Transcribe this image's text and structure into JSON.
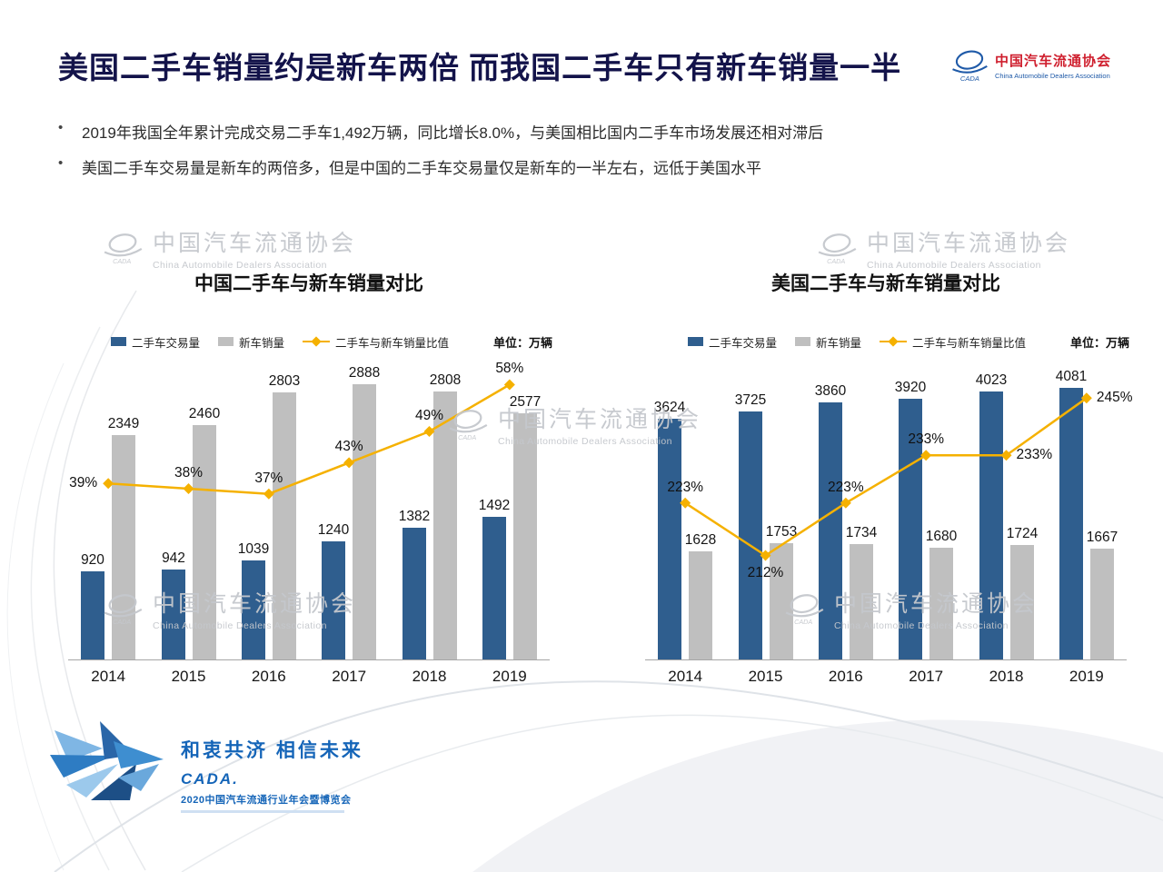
{
  "header": {
    "title": "美国二手车销量约是新车两倍 而我国二手车只有新车销量一半",
    "logo": {
      "cn": "中国汽车流通协会",
      "en": "China Automobile Dealers Association"
    }
  },
  "bullets": [
    "2019年我国全年累计完成交易二手车1,492万辆，同比增长8.0%，与美国相比国内二手车市场发展还相对滞后",
    "美国二手车交易量是新车的两倍多，但是中国的二手车交易量仅是新车的一半左右，远低于美国水平"
  ],
  "watermark": {
    "cn": "中国汽车流通协会",
    "en": "China Automobile Dealers Association"
  },
  "footer": {
    "slogan": "和衷共济 相信未来",
    "brand": "CADA.",
    "event": "2020中国汽车流通行业年会暨博览会"
  },
  "colors": {
    "bar_used": "#2F5E8E",
    "bar_new": "#BFBFBF",
    "line": "#F5B100",
    "title": "#13134a",
    "logo_red": "#cf1f2e",
    "logo_blue": "#1f5aa8"
  },
  "chart_data": [
    {
      "type": "bar",
      "title": "中国二手车与新车销量对比",
      "unit": "单位：万辆",
      "categories": [
        "2014",
        "2015",
        "2016",
        "2017",
        "2018",
        "2019"
      ],
      "series": [
        {
          "name": "二手车交易量",
          "kind": "bar",
          "values": [
            920,
            942,
            1039,
            1240,
            1382,
            1492
          ]
        },
        {
          "name": "新车销量",
          "kind": "bar",
          "values": [
            2349,
            2460,
            2803,
            2888,
            2808,
            2577
          ]
        },
        {
          "name": "二手车与新车销量比值",
          "kind": "line",
          "values": [
            39,
            38,
            37,
            43,
            49,
            58
          ],
          "labels": [
            "39%",
            "38%",
            "37%",
            "43%",
            "49%",
            "58%"
          ],
          "label_pos": [
            "left",
            "above",
            "above",
            "above",
            "above",
            "above"
          ]
        }
      ],
      "bar_axis_max": 3000,
      "line_axis_range": [
        5,
        60
      ],
      "legend_position": "top",
      "grid": false
    },
    {
      "type": "bar",
      "title": "美国二手车与新车销量对比",
      "unit": "单位：万辆",
      "categories": [
        "2014",
        "2015",
        "2016",
        "2017",
        "2018",
        "2019"
      ],
      "series": [
        {
          "name": "二手车交易量",
          "kind": "bar",
          "values": [
            3624,
            3725,
            3860,
            3920,
            4023,
            4081
          ]
        },
        {
          "name": "新车销量",
          "kind": "bar",
          "values": [
            1628,
            1753,
            1734,
            1680,
            1724,
            1667
          ]
        },
        {
          "name": "二手车与新车销量比值",
          "kind": "line",
          "values": [
            223,
            212,
            223,
            233,
            233,
            245
          ],
          "labels": [
            "223%",
            "212%",
            "223%",
            "233%",
            "233%",
            "245%"
          ],
          "label_pos": [
            "above",
            "below",
            "above",
            "above",
            "right",
            "right"
          ]
        }
      ],
      "bar_axis_max": 4300,
      "line_axis_range": [
        190,
        250
      ],
      "legend_position": "top",
      "grid": false
    }
  ]
}
